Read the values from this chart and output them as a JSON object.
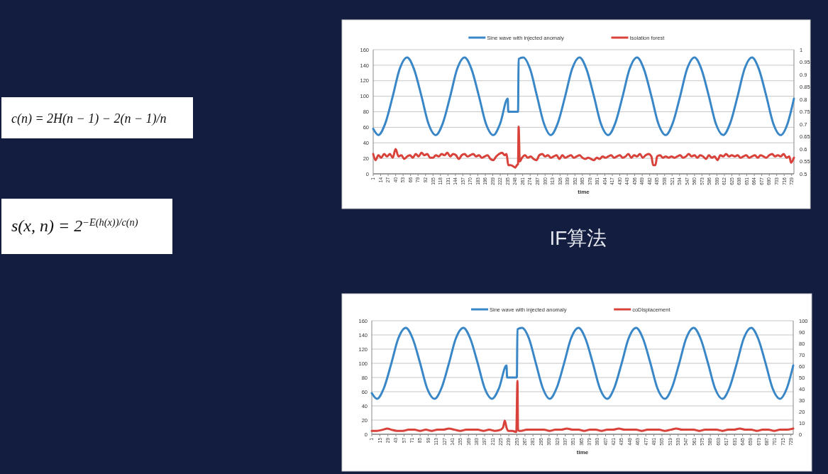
{
  "chart_data": [
    {
      "type": "other",
      "annotations": [
        "c(n) = 2H(n − 1) − 2(n − 1)/n",
        "s(x, n) = 2$^{−E(h(x))/c(n)}$"
      ]
    },
    {
      "type": "line",
      "xlabel": "time",
      "annotations": [
        "IF算法"
      ],
      "legend": "top",
      "grid": "y",
      "marker": "none",
      "line_style": "solid",
      "xlim": [
        1,
        733
      ],
      "xticks": [
        1,
        14,
        27,
        40,
        53,
        66,
        79,
        92,
        105,
        118,
        131,
        144,
        157,
        170,
        183,
        196,
        209,
        222,
        235,
        248,
        261,
        274,
        287,
        300,
        313,
        326,
        339,
        352,
        365,
        378,
        391,
        404,
        417,
        430,
        443,
        456,
        469,
        482,
        495,
        508,
        521,
        534,
        547,
        560,
        573,
        586,
        599,
        612,
        625,
        638,
        651,
        664,
        677,
        690,
        703,
        716,
        729
      ],
      "ylim": [
        0,
        160
      ],
      "yticks": [
        0,
        20,
        40,
        60,
        80,
        100,
        120,
        140,
        160
      ],
      "y2lim": [
        0.5,
        1
      ],
      "y2ticks": [
        0.5,
        0.55,
        0.6,
        0.65,
        0.7,
        0.75,
        0.8,
        0.85,
        0.9,
        0.95,
        1
      ],
      "series": [
        {
          "name": "Sine wave with injected anomaly",
          "color": "#3a87c8",
          "x": [
            1,
            10,
            22,
            35,
            47,
            60,
            72,
            85,
            97,
            110,
            122,
            135,
            147,
            160,
            172,
            185,
            197,
            210,
            222,
            235,
            236,
            253,
            254,
            262,
            274,
            286,
            298,
            310,
            322,
            335,
            347,
            360,
            372,
            385,
            397,
            410,
            422,
            435,
            447,
            460,
            472,
            485,
            497,
            510,
            522,
            535,
            547,
            560,
            572,
            585,
            597,
            610,
            622,
            635,
            647,
            660,
            672,
            685,
            697,
            710,
            722,
            733
          ],
          "values": [
            58,
            50,
            65,
            100,
            135,
            150,
            135,
            100,
            65,
            50,
            65,
            100,
            135,
            150,
            135,
            100,
            65,
            50,
            65,
            97,
            80,
            80,
            148,
            150,
            135,
            100,
            65,
            50,
            65,
            100,
            135,
            150,
            135,
            100,
            65,
            50,
            65,
            100,
            135,
            150,
            135,
            100,
            65,
            50,
            65,
            100,
            135,
            150,
            135,
            100,
            65,
            50,
            65,
            100,
            135,
            150,
            135,
            100,
            65,
            50,
            65,
            97
          ]
        },
        {
          "name": "Isolation forest",
          "color": "#d9423a",
          "axis": "y2",
          "x": [
            1,
            5,
            10,
            15,
            20,
            25,
            30,
            35,
            40,
            45,
            50,
            55,
            60,
            65,
            70,
            75,
            80,
            85,
            90,
            95,
            100,
            105,
            110,
            115,
            120,
            125,
            130,
            135,
            140,
            145,
            150,
            155,
            160,
            165,
            170,
            175,
            180,
            185,
            190,
            195,
            200,
            205,
            210,
            215,
            220,
            225,
            230,
            233,
            236,
            240,
            245,
            248,
            251,
            253,
            254,
            256,
            260,
            265,
            270,
            275,
            280,
            285,
            290,
            295,
            300,
            305,
            310,
            315,
            320,
            325,
            330,
            335,
            340,
            345,
            350,
            355,
            360,
            365,
            370,
            375,
            380,
            385,
            390,
            395,
            400,
            405,
            410,
            415,
            420,
            425,
            430,
            435,
            440,
            445,
            450,
            455,
            460,
            465,
            470,
            475,
            480,
            485,
            488,
            492,
            495,
            500,
            505,
            510,
            515,
            520,
            525,
            530,
            535,
            540,
            545,
            550,
            555,
            560,
            565,
            570,
            575,
            580,
            585,
            590,
            595,
            600,
            605,
            610,
            615,
            620,
            625,
            630,
            635,
            640,
            645,
            650,
            655,
            660,
            665,
            670,
            675,
            680,
            685,
            690,
            695,
            700,
            705,
            710,
            715,
            720,
            725,
            728,
            733
          ],
          "values": [
            0.58,
            0.555,
            0.575,
            0.565,
            0.58,
            0.57,
            0.58,
            0.565,
            0.6,
            0.57,
            0.575,
            0.56,
            0.57,
            0.575,
            0.565,
            0.58,
            0.57,
            0.585,
            0.575,
            0.58,
            0.565,
            0.565,
            0.575,
            0.57,
            0.58,
            0.575,
            0.585,
            0.57,
            0.58,
            0.575,
            0.56,
            0.575,
            0.58,
            0.57,
            0.575,
            0.58,
            0.57,
            0.575,
            0.565,
            0.57,
            0.575,
            0.56,
            0.555,
            0.57,
            0.58,
            0.585,
            0.575,
            0.58,
            0.535,
            0.535,
            0.53,
            0.525,
            0.535,
            0.54,
            0.69,
            0.55,
            0.565,
            0.575,
            0.565,
            0.57,
            0.56,
            0.555,
            0.575,
            0.58,
            0.57,
            0.575,
            0.565,
            0.57,
            0.575,
            0.56,
            0.575,
            0.565,
            0.57,
            0.575,
            0.565,
            0.57,
            0.575,
            0.565,
            0.56,
            0.565,
            0.56,
            0.555,
            0.565,
            0.56,
            0.57,
            0.565,
            0.57,
            0.575,
            0.565,
            0.57,
            0.575,
            0.565,
            0.57,
            0.58,
            0.565,
            0.575,
            0.57,
            0.58,
            0.565,
            0.575,
            0.58,
            0.57,
            0.535,
            0.535,
            0.57,
            0.575,
            0.565,
            0.57,
            0.565,
            0.57,
            0.565,
            0.57,
            0.575,
            0.565,
            0.57,
            0.58,
            0.57,
            0.575,
            0.565,
            0.575,
            0.57,
            0.56,
            0.575,
            0.565,
            0.57,
            0.555,
            0.575,
            0.57,
            0.58,
            0.57,
            0.575,
            0.57,
            0.575,
            0.565,
            0.57,
            0.575,
            0.565,
            0.57,
            0.575,
            0.565,
            0.575,
            0.57,
            0.565,
            0.575,
            0.58,
            0.57,
            0.575,
            0.57,
            0.58,
            0.565,
            0.57,
            0.545,
            0.565
          ]
        }
      ]
    },
    {
      "type": "line",
      "xlabel": "time",
      "legend": "top",
      "grid": "y",
      "marker": "none",
      "line_style": "solid",
      "xlim": [
        1,
        733
      ],
      "xticks": [
        1,
        15,
        29,
        43,
        57,
        71,
        85,
        99,
        113,
        127,
        141,
        155,
        169,
        183,
        197,
        211,
        225,
        239,
        253,
        267,
        281,
        295,
        309,
        323,
        337,
        351,
        365,
        379,
        393,
        407,
        421,
        435,
        449,
        463,
        477,
        491,
        505,
        519,
        533,
        547,
        561,
        575,
        589,
        603,
        617,
        631,
        645,
        659,
        673,
        687,
        701,
        715,
        729
      ],
      "ylim": [
        0,
        160
      ],
      "yticks": [
        0,
        20,
        40,
        60,
        80,
        100,
        120,
        140,
        160
      ],
      "y2lim": [
        0,
        100
      ],
      "y2ticks": [
        0,
        10,
        20,
        30,
        40,
        50,
        60,
        70,
        80,
        90,
        100
      ],
      "series": [
        {
          "name": "Sine wave with injected anomaly",
          "color": "#3a87c8",
          "x": [
            1,
            10,
            22,
            35,
            47,
            60,
            72,
            85,
            97,
            110,
            122,
            135,
            147,
            160,
            172,
            185,
            197,
            210,
            222,
            235,
            236,
            253,
            254,
            262,
            274,
            286,
            298,
            310,
            322,
            335,
            347,
            360,
            372,
            385,
            397,
            410,
            422,
            435,
            447,
            460,
            472,
            485,
            497,
            510,
            522,
            535,
            547,
            560,
            572,
            585,
            597,
            610,
            622,
            635,
            647,
            660,
            672,
            685,
            697,
            710,
            722,
            733
          ],
          "values": [
            58,
            50,
            65,
            100,
            135,
            150,
            135,
            100,
            65,
            50,
            65,
            100,
            135,
            150,
            135,
            100,
            65,
            50,
            65,
            97,
            80,
            80,
            148,
            150,
            135,
            100,
            65,
            50,
            65,
            100,
            135,
            150,
            135,
            100,
            65,
            50,
            65,
            100,
            135,
            150,
            135,
            100,
            65,
            50,
            65,
            100,
            135,
            150,
            135,
            100,
            65,
            50,
            65,
            100,
            135,
            150,
            135,
            100,
            65,
            50,
            65,
            97
          ]
        },
        {
          "name": "coDisplacement",
          "color": "#d9423a",
          "axis": "y2",
          "x": [
            1,
            10,
            20,
            28,
            35,
            45,
            55,
            65,
            75,
            85,
            95,
            105,
            115,
            125,
            135,
            145,
            155,
            165,
            175,
            185,
            195,
            205,
            215,
            225,
            229,
            232,
            235,
            238,
            245,
            252,
            254,
            255,
            257,
            260,
            270,
            280,
            290,
            300,
            310,
            320,
            330,
            340,
            350,
            360,
            370,
            380,
            390,
            400,
            410,
            420,
            430,
            440,
            450,
            460,
            470,
            480,
            490,
            500,
            510,
            520,
            530,
            540,
            550,
            560,
            570,
            580,
            590,
            600,
            610,
            620,
            630,
            640,
            650,
            660,
            670,
            680,
            690,
            700,
            710,
            720,
            733
          ],
          "values": [
            3,
            3,
            4,
            5,
            4,
            3,
            3,
            4,
            4,
            3,
            4,
            3,
            4,
            4,
            5,
            4,
            3,
            4,
            4,
            4,
            3,
            4,
            3,
            4,
            6,
            12,
            6,
            3,
            3,
            2,
            47,
            4,
            3,
            3,
            4,
            4,
            4,
            4,
            3,
            4,
            4,
            5,
            4,
            4,
            3,
            4,
            4,
            3,
            4,
            4,
            5,
            4,
            4,
            4,
            3,
            4,
            4,
            4,
            3,
            4,
            5,
            4,
            4,
            4,
            3,
            4,
            4,
            4,
            3,
            4,
            4,
            5,
            4,
            4,
            3,
            4,
            4,
            3,
            4,
            4,
            5
          ]
        }
      ]
    }
  ]
}
